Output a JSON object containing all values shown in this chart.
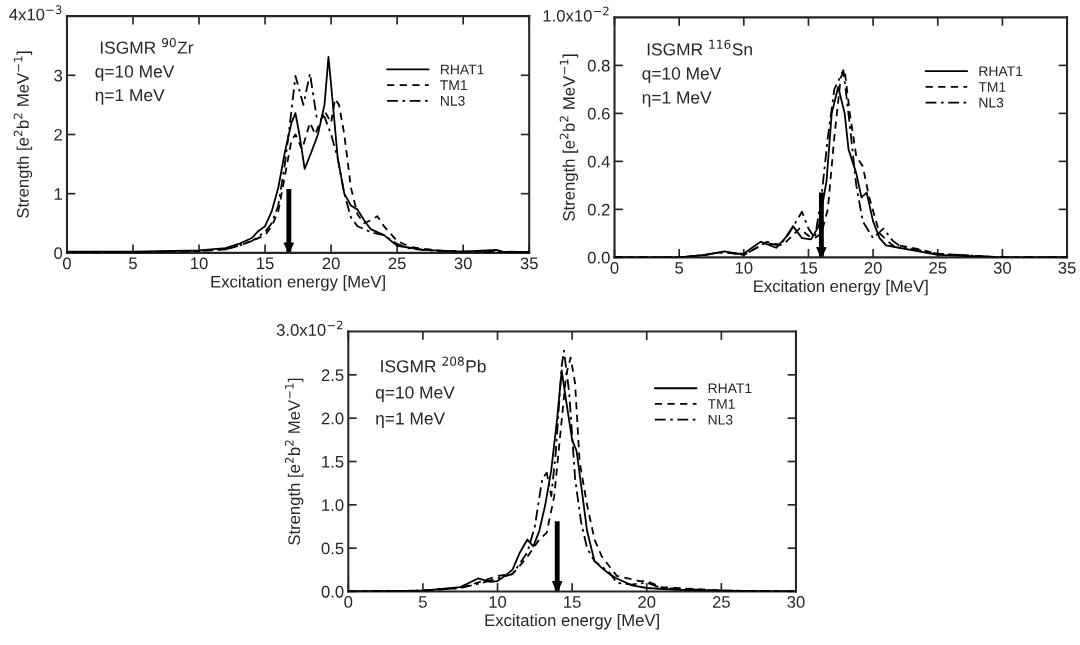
{
  "chart_data": [
    {
      "type": "line",
      "xlabel": "Excitation energy [MeV]",
      "ylabel": "Strength [e$^{2}$b$^{2}$ MeV$^{−1}$]",
      "xlim": [
        0,
        35
      ],
      "xticks": [
        0,
        5,
        10,
        15,
        20,
        25,
        30,
        35
      ],
      "ylim": [
        0,
        4
      ],
      "yticks": [
        0,
        1,
        2,
        3
      ],
      "grid": false,
      "legend": "top right",
      "annotations": [
        "ISGMR $^{90}$Zr",
        "q=10 MeV",
        "η=1 MeV",
        "4x10$^{−3}$"
      ],
      "ref_lines": [
        {
          "axis": "x",
          "value": 16.8,
          "color": "#000000"
        }
      ],
      "series": [
        {
          "name": "RHAT1",
          "color": "#000000",
          "line_style": "solid",
          "x": [
            0,
            5,
            10,
            12,
            13,
            14,
            14.5,
            15,
            15.5,
            16,
            16.5,
            17,
            17.3,
            17.6,
            18,
            18.5,
            19,
            19.5,
            19.8,
            20.1,
            20.5,
            21,
            21.5,
            22,
            22.5,
            23,
            24,
            25,
            27,
            30,
            32.5,
            33,
            35
          ],
          "values": [
            0.02,
            0.02,
            0.04,
            0.08,
            0.15,
            0.25,
            0.37,
            0.45,
            0.7,
            1.1,
            1.7,
            2.2,
            2.36,
            2.0,
            1.42,
            1.7,
            2.0,
            2.5,
            3.31,
            2.6,
            1.6,
            1.0,
            0.8,
            0.73,
            0.55,
            0.4,
            0.3,
            0.12,
            0.05,
            0.02,
            0.05,
            0.02,
            0.01
          ]
        },
        {
          "name": "TM1",
          "color": "#000000",
          "line_style": "dashed",
          "x": [
            0,
            5,
            10,
            12,
            13,
            14,
            15,
            15.5,
            16,
            16.5,
            17,
            17.3,
            17.8,
            18.4,
            18.8,
            19.5,
            20,
            20.3,
            20.6,
            21,
            21.5,
            22,
            22.5,
            23,
            23.5,
            24,
            25,
            26,
            28,
            30,
            35
          ],
          "values": [
            0.01,
            0.01,
            0.03,
            0.06,
            0.12,
            0.2,
            0.3,
            0.45,
            0.7,
            1.3,
            1.9,
            2.0,
            1.75,
            2.2,
            2.0,
            2.4,
            2.2,
            2.6,
            2.5,
            2.0,
            1.1,
            0.65,
            0.5,
            0.55,
            0.62,
            0.45,
            0.2,
            0.1,
            0.04,
            0.02,
            0.01
          ]
        },
        {
          "name": "NL3",
          "color": "#000000",
          "line_style": "dashdot",
          "x": [
            0,
            5,
            10,
            12,
            13,
            14,
            15,
            15.5,
            16,
            16.5,
            17,
            17.3,
            17.9,
            18.4,
            18.9,
            19.5,
            20,
            20.5,
            21,
            21.5,
            22,
            23,
            24,
            25,
            26,
            28,
            30,
            35
          ],
          "values": [
            0.01,
            0.01,
            0.03,
            0.06,
            0.12,
            0.2,
            0.35,
            0.5,
            0.8,
            1.5,
            2.4,
            2.99,
            2.5,
            3.03,
            2.3,
            2.3,
            2.0,
            1.6,
            1.0,
            0.6,
            0.45,
            0.35,
            0.3,
            0.15,
            0.07,
            0.03,
            0.02,
            0.01
          ]
        }
      ]
    },
    {
      "type": "line",
      "xlabel": "Excitation energy [MeV]",
      "ylabel": "Strength [e$^{2}$b$^{2}$ MeV$^{−1}$]",
      "xlim": [
        0,
        35
      ],
      "xticks": [
        0,
        5,
        10,
        15,
        20,
        25,
        30,
        35
      ],
      "ylim": [
        0,
        1.0
      ],
      "yticks": [
        {
          "value": 0,
          "label": "0.0"
        },
        0.2,
        0.4,
        0.6,
        0.8
      ],
      "grid": false,
      "legend": "top right",
      "annotations": [
        "ISGMR $^{116}$Sn",
        "q=10 MeV",
        "η=1 MeV",
        "1.0x10$^{−2}$"
      ],
      "ref_lines": [
        {
          "axis": "x",
          "value": 16.0,
          "color": "#000000"
        }
      ],
      "series": [
        {
          "name": "RHAT1",
          "color": "#000000",
          "line_style": "solid",
          "x": [
            0,
            5,
            7,
            8,
            8.5,
            9.5,
            10,
            10.5,
            11.3,
            12.5,
            13.2,
            13.8,
            14.5,
            15.2,
            15.8,
            16.4,
            16.8,
            17.3,
            17.8,
            18.1,
            18.7,
            19.1,
            19.5,
            20,
            20.5,
            21,
            22,
            23,
            25,
            30,
            35
          ],
          "values": [
            0.0,
            0.0,
            0.01,
            0.02,
            0.025,
            0.015,
            0.015,
            0.035,
            0.065,
            0.04,
            0.08,
            0.13,
            0.08,
            0.075,
            0.13,
            0.32,
            0.6,
            0.71,
            0.6,
            0.45,
            0.35,
            0.25,
            0.27,
            0.15,
            0.08,
            0.05,
            0.04,
            0.03,
            0.01,
            0.0,
            0.0
          ]
        },
        {
          "name": "TM1",
          "color": "#000000",
          "line_style": "dashed",
          "x": [
            0,
            5,
            7,
            8,
            8.7,
            9.5,
            10,
            11,
            11.8,
            13,
            14.3,
            15,
            15.5,
            16,
            16.5,
            17,
            17.5,
            17.8,
            18.2,
            18.7,
            19.2,
            19.7,
            20.5,
            21.5,
            22,
            23,
            25,
            30,
            35
          ],
          "values": [
            0.0,
            0.0,
            0.01,
            0.02,
            0.02,
            0.015,
            0.01,
            0.04,
            0.065,
            0.05,
            0.12,
            0.09,
            0.08,
            0.1,
            0.2,
            0.5,
            0.75,
            0.78,
            0.6,
            0.42,
            0.38,
            0.25,
            0.1,
            0.05,
            0.05,
            0.04,
            0.015,
            0.0,
            0.0
          ]
        },
        {
          "name": "NL3",
          "color": "#000000",
          "line_style": "dashdot",
          "x": [
            0,
            5,
            7,
            8,
            8.6,
            9.5,
            10,
            11,
            11.6,
            12.8,
            13.5,
            14.5,
            15,
            15.5,
            16,
            16.5,
            17,
            17.7,
            18.2,
            18.7,
            19.2,
            20,
            20.8,
            21.5,
            22,
            23,
            25,
            30,
            35
          ],
          "values": [
            0.0,
            0.0,
            0.01,
            0.02,
            0.02,
            0.015,
            0.01,
            0.04,
            0.06,
            0.05,
            0.1,
            0.19,
            0.12,
            0.08,
            0.25,
            0.5,
            0.7,
            0.78,
            0.55,
            0.3,
            0.15,
            0.08,
            0.12,
            0.07,
            0.05,
            0.035,
            0.015,
            0.0,
            0.0
          ]
        }
      ]
    },
    {
      "type": "line",
      "xlabel": "Excitation energy [MeV]",
      "ylabel": "Strength [e$^{2}$b$^{2}$ MeV$^{−1}$]",
      "xlim": [
        0,
        30
      ],
      "xticks": [
        0,
        5,
        10,
        15,
        20,
        25,
        30
      ],
      "ylim": [
        0,
        3.0
      ],
      "yticks": [
        {
          "value": 0,
          "label": "0.0"
        },
        0.5,
        {
          "value": 1,
          "label": "1.0"
        },
        1.5,
        {
          "value": 2,
          "label": "2.0"
        },
        2.5
      ],
      "grid": false,
      "legend": "top right",
      "annotations": [
        "ISGMR $^{208}$Pb",
        "q=10 MeV",
        "η=1 MeV",
        "3.0x10$^{−2}$"
      ],
      "ref_lines": [
        {
          "axis": "x",
          "value": 14.0,
          "color": "#000000"
        }
      ],
      "series": [
        {
          "name": "RHAT1",
          "color": "#000000",
          "line_style": "solid",
          "x": [
            0,
            5,
            7.5,
            8.7,
            9.5,
            10,
            10.5,
            11,
            11.5,
            12,
            12.4,
            12.8,
            13.2,
            13.6,
            14,
            14.3,
            14.6,
            15,
            15.3,
            15.7,
            16,
            16.5,
            17,
            17.5,
            18,
            19,
            20,
            22,
            25,
            30
          ],
          "values": [
            0.0,
            0.01,
            0.05,
            0.15,
            0.11,
            0.12,
            0.18,
            0.25,
            0.45,
            0.6,
            0.52,
            0.7,
            1.0,
            1.4,
            2.0,
            2.55,
            2.2,
            1.75,
            1.62,
            1.1,
            0.7,
            0.35,
            0.27,
            0.2,
            0.15,
            0.07,
            0.04,
            0.02,
            0.01,
            0.0
          ]
        },
        {
          "name": "TM1",
          "color": "#000000",
          "line_style": "dashed",
          "x": [
            0,
            5,
            7.5,
            9,
            10,
            11,
            12,
            12.8,
            13.3,
            13.8,
            14.2,
            14.6,
            14.9,
            15.2,
            15.5,
            16,
            16.5,
            17,
            18,
            19.5,
            20,
            21,
            25,
            30
          ],
          "values": [
            0.0,
            0.01,
            0.04,
            0.12,
            0.18,
            0.2,
            0.4,
            0.6,
            0.68,
            1.1,
            1.8,
            2.5,
            2.7,
            2.4,
            1.5,
            1.0,
            0.6,
            0.4,
            0.18,
            0.12,
            0.12,
            0.05,
            0.01,
            0.0
          ]
        },
        {
          "name": "NL3",
          "color": "#000000",
          "line_style": "dashdot",
          "x": [
            0,
            5,
            7.5,
            9,
            10,
            11,
            12,
            12.5,
            13,
            13.3,
            13.6,
            13.9,
            14.3,
            14.45,
            14.8,
            15.2,
            15.6,
            16,
            16.5,
            17.5,
            18,
            19,
            20,
            21,
            25,
            30
          ],
          "values": [
            0.0,
            0.01,
            0.04,
            0.1,
            0.15,
            0.2,
            0.45,
            0.75,
            1.3,
            1.37,
            1.1,
            1.6,
            2.6,
            2.78,
            2.3,
            1.3,
            0.8,
            0.5,
            0.35,
            0.22,
            0.1,
            0.08,
            0.1,
            0.04,
            0.01,
            0.0
          ]
        }
      ]
    }
  ]
}
